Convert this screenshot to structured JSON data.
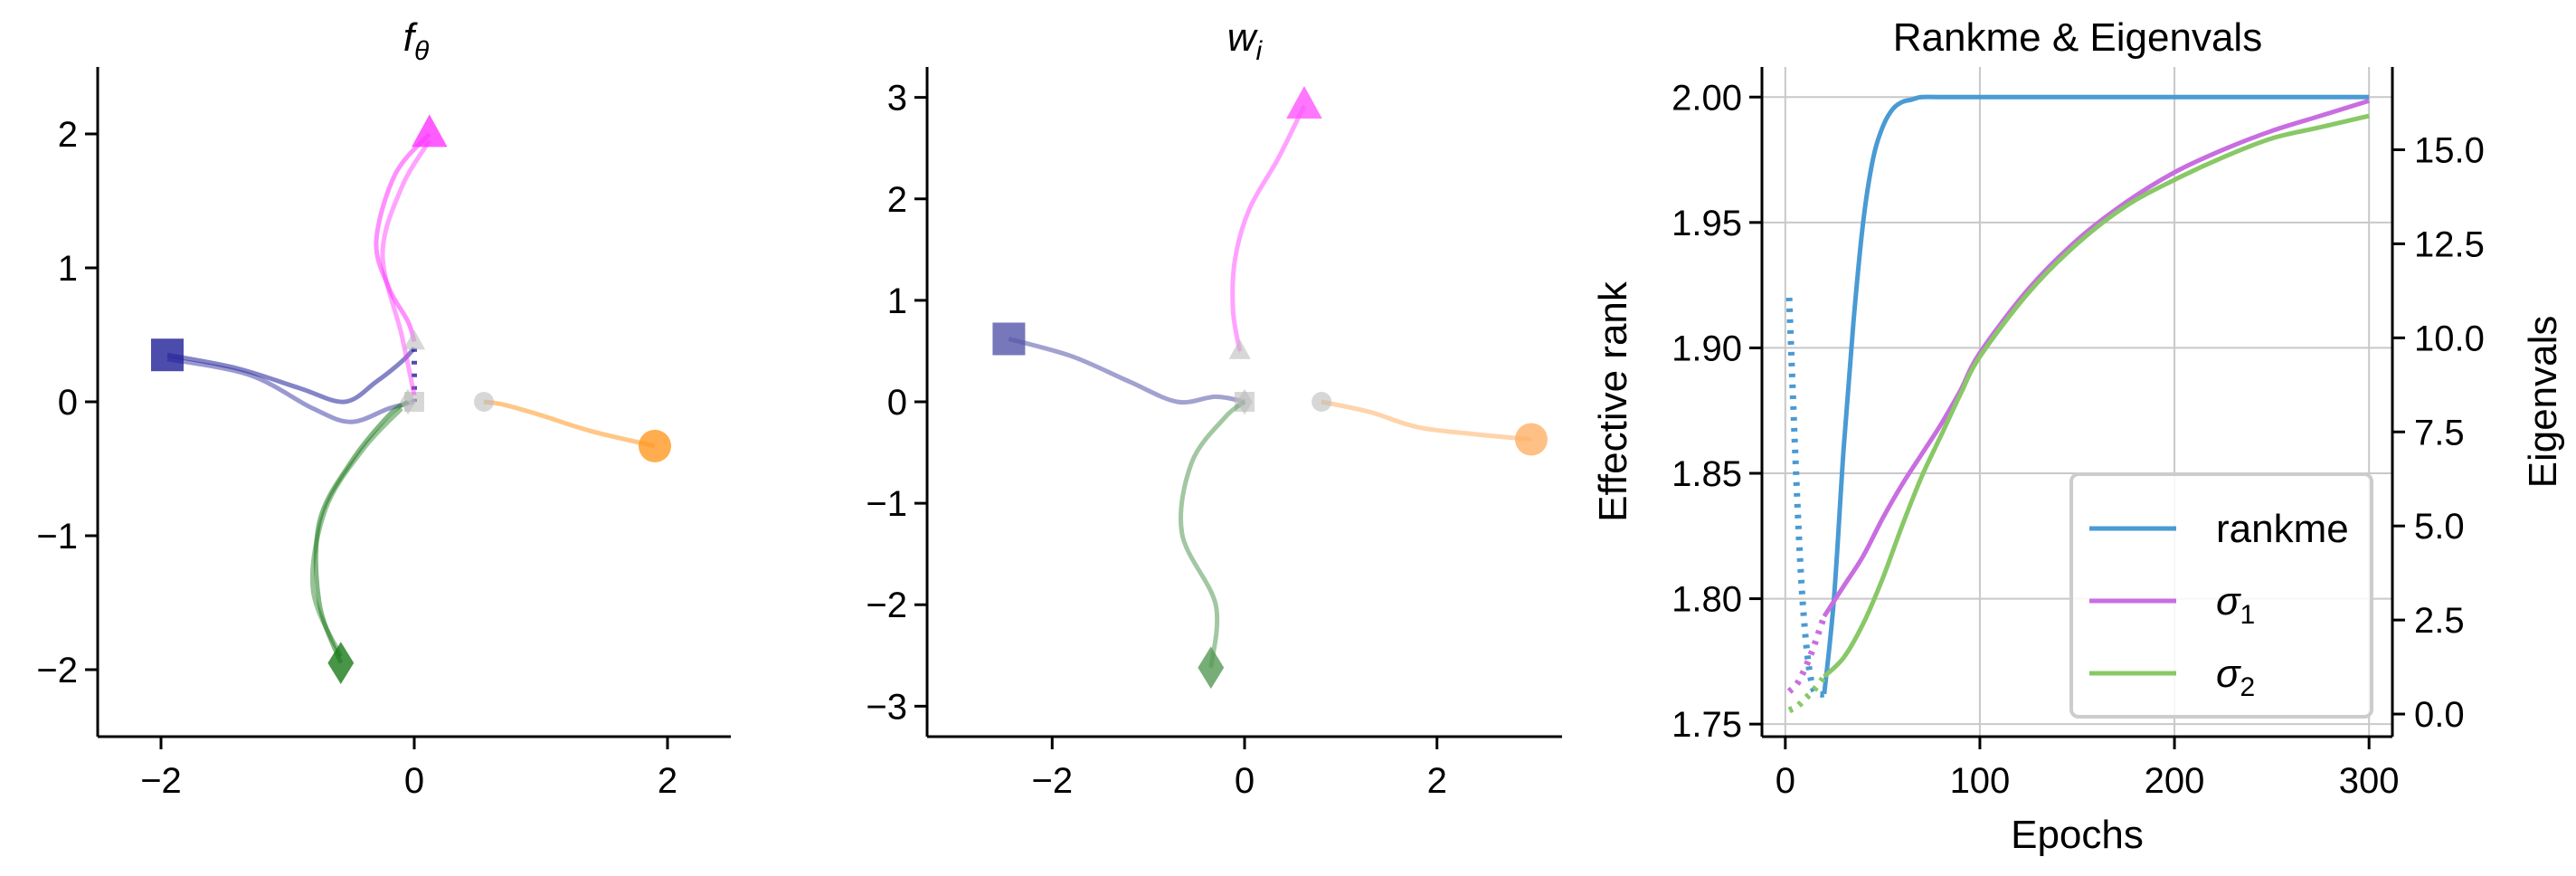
{
  "figure": {
    "panels": [
      {
        "id": "f",
        "title_base": "f",
        "title_sub": "θ"
      },
      {
        "id": "w",
        "title_base": "w",
        "title_sub": "i"
      },
      {
        "id": "r",
        "title": "Rankme & Eigenvals"
      }
    ]
  },
  "chart_data": [
    {
      "type": "scatter",
      "title": "fθ",
      "xlim": [
        -2.5,
        2.5
      ],
      "ylim": [
        -2.5,
        2.5
      ],
      "xticks": [
        -2,
        0,
        2
      ],
      "yticks": [
        -2,
        -1,
        0,
        1,
        2
      ],
      "grid": false,
      "series": [
        {
          "color": "#1f1f99",
          "marker": "square",
          "start": [
            -1.95,
            0.35
          ],
          "end": [
            0.0,
            0.0
          ],
          "path": [
            [
              -1.95,
              0.35
            ],
            [
              -1.4,
              0.25
            ],
            [
              -0.9,
              0.1
            ],
            [
              -0.55,
              0.0
            ],
            [
              -0.3,
              0.15
            ],
            [
              -0.1,
              0.3
            ],
            [
              0.0,
              0.4
            ]
          ],
          "path2": [
            [
              -1.95,
              0.32
            ],
            [
              -1.3,
              0.2
            ],
            [
              -0.8,
              -0.05
            ],
            [
              -0.5,
              -0.15
            ],
            [
              -0.2,
              -0.05
            ],
            [
              0.0,
              0.0
            ]
          ]
        },
        {
          "color": "#ff33ff",
          "marker": "triangle",
          "start": [
            0.12,
            2.0
          ],
          "end": [
            0.0,
            0.45
          ],
          "path": [
            [
              0.12,
              2.0
            ],
            [
              -0.15,
              1.7
            ],
            [
              -0.3,
              1.2
            ],
            [
              -0.2,
              0.85
            ],
            [
              -0.05,
              0.6
            ],
            [
              0.0,
              0.45
            ]
          ],
          "path2": [
            [
              0.12,
              1.95
            ],
            [
              -0.1,
              1.6
            ],
            [
              -0.25,
              1.1
            ],
            [
              -0.1,
              0.5
            ],
            [
              0.0,
              0.05
            ]
          ]
        },
        {
          "color": "#ff9922",
          "marker": "circle",
          "start": [
            1.9,
            -0.33
          ],
          "end": [
            0.55,
            0.0
          ],
          "path": [
            [
              1.9,
              -0.33
            ],
            [
              1.4,
              -0.22
            ],
            [
              1.0,
              -0.1
            ],
            [
              0.7,
              -0.02
            ],
            [
              0.55,
              0.0
            ]
          ]
        },
        {
          "color": "#1a7a1a",
          "marker": "diamond",
          "start": [
            -0.58,
            -1.95
          ],
          "end": [
            -0.05,
            0.0
          ],
          "path": [
            [
              -0.58,
              -1.95
            ],
            [
              -0.75,
              -1.5
            ],
            [
              -0.75,
              -0.9
            ],
            [
              -0.5,
              -0.45
            ],
            [
              -0.2,
              -0.1
            ],
            [
              -0.05,
              0.0
            ]
          ],
          "path2": [
            [
              -0.58,
              -1.9
            ],
            [
              -0.8,
              -1.4
            ],
            [
              -0.7,
              -0.8
            ],
            [
              -0.4,
              -0.35
            ],
            [
              -0.1,
              -0.05
            ]
          ]
        }
      ]
    },
    {
      "type": "scatter",
      "title": "wi",
      "xlim": [
        -3.3,
        3.3
      ],
      "ylim": [
        -3.3,
        3.3
      ],
      "xticks": [
        -2,
        0,
        2
      ],
      "yticks": [
        -3,
        -2,
        -1,
        0,
        1,
        2,
        3
      ],
      "grid": false,
      "series": [
        {
          "color": "#5555aa",
          "marker": "square",
          "start": [
            -2.45,
            0.62
          ],
          "end": [
            0.0,
            0.0
          ],
          "path": [
            [
              -2.45,
              0.62
            ],
            [
              -1.8,
              0.45
            ],
            [
              -1.2,
              0.2
            ],
            [
              -0.7,
              0.0
            ],
            [
              -0.3,
              0.05
            ],
            [
              0.0,
              0.0
            ]
          ]
        },
        {
          "color": "#ff55ff",
          "marker": "triangle",
          "start": [
            0.62,
            2.92
          ],
          "end": [
            -0.05,
            0.5
          ],
          "path": [
            [
              0.62,
              2.92
            ],
            [
              0.35,
              2.4
            ],
            [
              0.05,
              1.9
            ],
            [
              -0.1,
              1.4
            ],
            [
              -0.12,
              0.9
            ],
            [
              -0.05,
              0.5
            ]
          ]
        },
        {
          "color": "#ffb066",
          "marker": "circle",
          "start": [
            2.98,
            -0.37
          ],
          "end": [
            0.8,
            0.0
          ],
          "path": [
            [
              2.98,
              -0.37
            ],
            [
              2.4,
              -0.32
            ],
            [
              1.8,
              -0.25
            ],
            [
              1.3,
              -0.1
            ],
            [
              0.8,
              0.0
            ]
          ]
        },
        {
          "color": "#559955",
          "marker": "diamond",
          "start": [
            -0.35,
            -2.62
          ],
          "end": [
            0.0,
            0.0
          ],
          "path": [
            [
              -0.35,
              -2.62
            ],
            [
              -0.3,
              -2.0
            ],
            [
              -0.65,
              -1.3
            ],
            [
              -0.55,
              -0.6
            ],
            [
              -0.2,
              -0.15
            ],
            [
              0.0,
              0.0
            ]
          ]
        }
      ]
    },
    {
      "type": "line",
      "title": "Rankme & Eigenvals",
      "xlabel": "Epochs",
      "ylabel": "Effective rank",
      "y2label": "Eigenvals",
      "xlim": [
        -12,
        312
      ],
      "ylim": [
        1.745,
        2.012
      ],
      "y2lim": [
        -0.6,
        17.2
      ],
      "xticks": [
        0,
        100,
        200,
        300
      ],
      "yticks": [
        1.75,
        1.8,
        1.85,
        1.9,
        1.95,
        2.0
      ],
      "y2ticks": [
        0.0,
        2.5,
        5.0,
        7.5,
        10.0,
        12.5,
        15.0
      ],
      "grid": true,
      "legend_position": "lower-right",
      "series": [
        {
          "name": "rankme",
          "color": "#4a9ad4",
          "axis": "left",
          "x": [
            20,
            25,
            30,
            35,
            40,
            45,
            50,
            55,
            60,
            65,
            70,
            80,
            100,
            150,
            200,
            250,
            300
          ],
          "y": [
            1.762,
            1.8,
            1.86,
            1.91,
            1.95,
            1.975,
            1.988,
            1.995,
            1.998,
            1.999,
            2.0,
            2.0,
            2.0,
            2.0,
            2.0,
            2.0,
            2.0
          ],
          "dotted_x": [
            2,
            5,
            8,
            11,
            14,
            17,
            20
          ],
          "dotted_y": [
            1.92,
            1.86,
            1.81,
            1.78,
            1.765,
            1.762,
            1.762
          ]
        },
        {
          "name": "σ1",
          "color": "#c86ee0",
          "axis": "right",
          "x": [
            20,
            30,
            40,
            50,
            60,
            70,
            80,
            90,
            100,
            125,
            150,
            175,
            200,
            225,
            250,
            275,
            300
          ],
          "y": [
            2.6,
            3.4,
            4.2,
            5.2,
            6.1,
            6.9,
            7.7,
            8.6,
            9.6,
            11.3,
            12.6,
            13.6,
            14.4,
            15.0,
            15.5,
            15.9,
            16.3
          ],
          "dotted_x": [
            2,
            6,
            10,
            14,
            18,
            20
          ],
          "dotted_y": [
            0.6,
            0.8,
            1.2,
            1.7,
            2.3,
            2.6
          ]
        },
        {
          "name": "σ2",
          "color": "#88c866",
          "axis": "right",
          "x": [
            20,
            30,
            40,
            50,
            60,
            70,
            80,
            90,
            100,
            125,
            150,
            175,
            200,
            225,
            250,
            275,
            300
          ],
          "y": [
            1.0,
            1.5,
            2.4,
            3.6,
            5.0,
            6.3,
            7.4,
            8.5,
            9.5,
            11.2,
            12.5,
            13.5,
            14.2,
            14.8,
            15.3,
            15.6,
            15.9
          ],
          "dotted_x": [
            2,
            6,
            10,
            14,
            18,
            20
          ],
          "dotted_y": [
            0.1,
            0.2,
            0.4,
            0.6,
            0.85,
            1.0
          ]
        }
      ]
    }
  ]
}
